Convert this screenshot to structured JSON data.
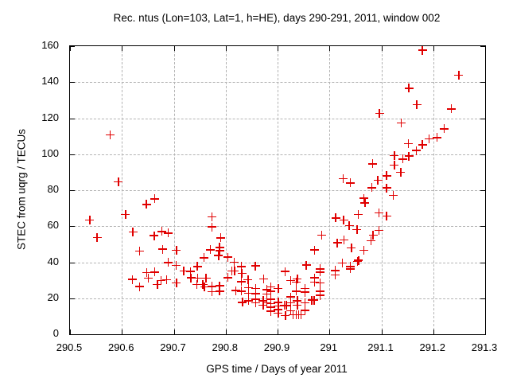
{
  "chart_data": {
    "type": "scatter",
    "title": "Rec. ntus (Lon=103, Lat=1, h=HE), days 290-291, 2011, window 002",
    "xlabel": "GPS time / Days of year 2011",
    "ylabel": "STEC from uqrg / TECUs",
    "xlim": [
      290.5,
      291.3
    ],
    "ylim": [
      0,
      160
    ],
    "xtick_labels": [
      "290.5",
      "290.6",
      "290.7",
      "290.8",
      "290.9",
      "291",
      "291.1",
      "291.2",
      "291.3"
    ],
    "xtick_values": [
      290.5,
      290.6,
      290.7,
      290.8,
      290.9,
      291.0,
      291.1,
      291.2,
      291.3
    ],
    "ytick_labels": [
      "0",
      "20",
      "40",
      "60",
      "80",
      "100",
      "120",
      "140",
      "160"
    ],
    "ytick_values": [
      0,
      20,
      40,
      60,
      80,
      100,
      120,
      140,
      160
    ],
    "grid": true,
    "legend_position": "none",
    "marker": "plus",
    "marker_color": "#e00000",
    "series": [
      {
        "name": "STEC from uqrg",
        "points": [
          [
            290.539,
            63.1
          ],
          [
            290.553,
            53.5
          ],
          [
            290.578,
            110.5
          ],
          [
            290.594,
            84.4
          ],
          [
            290.608,
            66.2
          ],
          [
            290.621,
            30.2
          ],
          [
            290.622,
            56.6
          ],
          [
            290.635,
            46.0
          ],
          [
            290.635,
            26.2
          ],
          [
            290.648,
            71.9
          ],
          [
            290.649,
            34.0
          ],
          [
            290.652,
            31.0
          ],
          [
            290.663,
            54.5
          ],
          [
            290.664,
            75.0
          ],
          [
            290.664,
            34.3
          ],
          [
            290.669,
            27.3
          ],
          [
            290.676,
            29.7
          ],
          [
            290.678,
            56.9
          ],
          [
            290.679,
            47.0
          ],
          [
            290.687,
            30.1
          ],
          [
            290.69,
            56.0
          ],
          [
            290.69,
            39.6
          ],
          [
            290.705,
            38.0
          ],
          [
            290.706,
            46.5
          ],
          [
            290.706,
            28.3
          ],
          [
            290.72,
            34.9
          ],
          [
            290.733,
            34.6
          ],
          [
            290.734,
            31.1
          ],
          [
            290.745,
            27.5
          ],
          [
            290.746,
            37.4
          ],
          [
            290.747,
            31.0
          ],
          [
            290.757,
            27.3
          ],
          [
            290.759,
            42.3
          ],
          [
            290.76,
            26.1
          ],
          [
            290.763,
            30.9
          ],
          [
            290.771,
            46.7
          ],
          [
            290.774,
            65.0
          ],
          [
            290.774,
            59.4
          ],
          [
            290.774,
            26.4
          ],
          [
            290.774,
            23.4
          ],
          [
            290.787,
            43.5
          ],
          [
            290.789,
            48.0
          ],
          [
            290.789,
            46.1
          ],
          [
            290.789,
            26.7
          ],
          [
            290.789,
            23.7
          ],
          [
            290.791,
            53.3
          ],
          [
            290.805,
            42.6
          ],
          [
            290.805,
            31.2
          ],
          [
            290.813,
            34.9
          ],
          [
            290.817,
            39.8
          ],
          [
            290.818,
            34.9
          ],
          [
            290.82,
            24.0
          ],
          [
            290.831,
            37.4
          ],
          [
            290.831,
            29.0
          ],
          [
            290.831,
            23.7
          ],
          [
            290.832,
            33.5
          ],
          [
            290.833,
            17.5
          ],
          [
            290.844,
            30.1
          ],
          [
            290.845,
            25.6
          ],
          [
            290.845,
            22.5
          ],
          [
            290.845,
            18.4
          ],
          [
            290.858,
            37.7
          ],
          [
            290.859,
            25.2
          ],
          [
            290.859,
            22.3
          ],
          [
            290.859,
            19.3
          ],
          [
            290.859,
            17.2
          ],
          [
            290.873,
            18.4
          ],
          [
            290.873,
            16.0
          ],
          [
            290.874,
            30.5
          ],
          [
            290.88,
            24.6
          ],
          [
            290.88,
            22.2
          ],
          [
            290.88,
            17.2
          ],
          [
            290.888,
            26.1
          ],
          [
            290.888,
            23.7
          ],
          [
            290.888,
            19.3
          ],
          [
            290.888,
            16.9
          ],
          [
            290.888,
            14.9
          ],
          [
            290.888,
            12.5
          ],
          [
            290.902,
            25.2
          ],
          [
            290.902,
            17.5
          ],
          [
            290.902,
            15.5
          ],
          [
            290.902,
            13.4
          ],
          [
            290.902,
            11.4
          ],
          [
            290.914,
            15.8
          ],
          [
            290.915,
            34.6
          ],
          [
            290.916,
            10.2
          ],
          [
            290.918,
            15.8
          ],
          [
            290.926,
            29.7
          ],
          [
            290.926,
            20.5
          ],
          [
            290.926,
            17.2
          ],
          [
            290.926,
            12.8
          ],
          [
            290.931,
            10.7
          ],
          [
            290.937,
            28.7
          ],
          [
            290.937,
            23.7
          ],
          [
            290.937,
            10.7
          ],
          [
            290.939,
            30.6
          ],
          [
            290.939,
            18.4
          ],
          [
            290.939,
            16.0
          ],
          [
            290.941,
            10.7
          ],
          [
            290.946,
            10.7
          ],
          [
            290.954,
            25.2
          ],
          [
            290.954,
            23.1
          ],
          [
            290.954,
            17.2
          ],
          [
            290.954,
            13.1
          ],
          [
            290.956,
            38.2
          ],
          [
            290.967,
            18.7
          ],
          [
            290.971,
            18.7
          ],
          [
            290.972,
            46.6
          ],
          [
            290.972,
            31.1
          ],
          [
            290.972,
            28.7
          ],
          [
            290.983,
            36.1
          ],
          [
            290.983,
            34.3
          ],
          [
            290.983,
            28.2
          ],
          [
            290.983,
            23.7
          ],
          [
            290.983,
            21.4
          ],
          [
            290.986,
            54.9
          ],
          [
            291.012,
            35.2
          ],
          [
            291.012,
            32.8
          ],
          [
            291.013,
            64.4
          ],
          [
            291.016,
            50.5
          ],
          [
            291.026,
            39.3
          ],
          [
            291.027,
            86.1
          ],
          [
            291.028,
            63.2
          ],
          [
            291.029,
            52.2
          ],
          [
            291.039,
            60.1
          ],
          [
            291.041,
            83.8
          ],
          [
            291.041,
            37.4
          ],
          [
            291.041,
            36.1
          ],
          [
            291.043,
            47.7
          ],
          [
            291.054,
            58.0
          ],
          [
            291.055,
            40.2
          ],
          [
            291.056,
            66.2
          ],
          [
            291.057,
            40.8
          ],
          [
            291.067,
            75.3
          ],
          [
            291.067,
            46.4
          ],
          [
            291.069,
            72.8
          ],
          [
            291.081,
            51.7
          ],
          [
            291.082,
            81.2
          ],
          [
            291.084,
            94.4
          ],
          [
            291.085,
            54.8
          ],
          [
            291.094,
            85.2
          ],
          [
            291.096,
            67.1
          ],
          [
            291.096,
            57.5
          ],
          [
            291.097,
            122.4
          ],
          [
            291.111,
            87.8
          ],
          [
            291.111,
            81.0
          ],
          [
            291.111,
            65.4
          ],
          [
            291.124,
            76.9
          ],
          [
            291.126,
            99.1
          ],
          [
            291.126,
            93.7
          ],
          [
            291.138,
            89.7
          ],
          [
            291.139,
            117.1
          ],
          [
            291.142,
            97.1
          ],
          [
            291.153,
            105.6
          ],
          [
            291.154,
            136.4
          ],
          [
            291.154,
            98.7
          ],
          [
            291.168,
            101.8
          ],
          [
            291.169,
            127.4
          ],
          [
            291.18,
            157.5
          ],
          [
            291.18,
            105.0
          ],
          [
            291.193,
            108.2
          ],
          [
            291.208,
            109.0
          ],
          [
            291.222,
            113.9
          ],
          [
            291.236,
            124.9
          ],
          [
            291.25,
            143.6
          ]
        ]
      }
    ]
  }
}
